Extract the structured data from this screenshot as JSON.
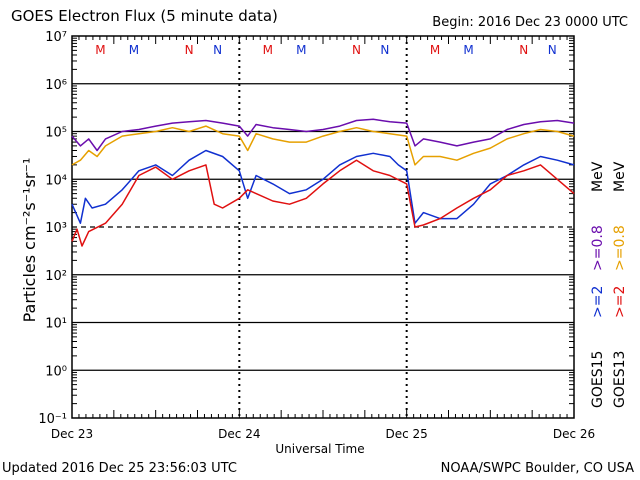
{
  "header": {
    "title": "GOES Electron Flux (5 minute data)",
    "begin": "Begin: 2016 Dec 23 0000 UTC"
  },
  "footer": {
    "updated": "Updated 2016 Dec 25 23:56:03 UTC",
    "credit": "NOAA/SWPC Boulder, CO USA"
  },
  "axis_labels": {
    "x": "Universal Time",
    "y": "Particles cm⁻²s⁻¹sr⁻¹"
  },
  "right_labels": {
    "goes15": "GOES15",
    "goes13": "GOES13",
    "red_high": ">=0.8",
    "red_low": ">=2",
    "blue_high": ">=0.8",
    "blue_low": ">=2",
    "mev_high": "MeV",
    "mev_low": "MeV"
  },
  "colors": {
    "goes15_high": "#6a0dad",
    "goes13_high": "#e6a000",
    "goes15_low": "#1030d0",
    "goes13_low": "#e01010",
    "M_marker": "#e01010",
    "N_marker": "#1030d0"
  },
  "chart_data": {
    "type": "line",
    "title": "GOES Electron Flux (5 minute data)",
    "xlabel": "Universal Time",
    "ylabel": "Particles cm⁻²s⁻¹sr⁻¹",
    "y_scale": "log",
    "ylim": [
      0.1,
      10000000
    ],
    "y_ticks": [
      "10⁻¹",
      "10⁰",
      "10¹",
      "10²",
      "10³",
      "10⁴",
      "10⁵",
      "10⁶",
      "10⁷"
    ],
    "x_ticks": [
      "Dec 23",
      "Dec 24",
      "Dec 25",
      "Dec 26"
    ],
    "threshold_line": 1000,
    "day_markers": [
      {
        "label": "M",
        "day": 0.17,
        "color": "red"
      },
      {
        "label": "M",
        "day": 0.37,
        "color": "blue"
      },
      {
        "label": "N",
        "day": 0.7,
        "color": "red"
      },
      {
        "label": "N",
        "day": 0.87,
        "color": "blue"
      },
      {
        "label": "M",
        "day": 1.17,
        "color": "red"
      },
      {
        "label": "M",
        "day": 1.37,
        "color": "blue"
      },
      {
        "label": "N",
        "day": 1.7,
        "color": "red"
      },
      {
        "label": "N",
        "day": 1.87,
        "color": "blue"
      },
      {
        "label": "M",
        "day": 2.17,
        "color": "red"
      },
      {
        "label": "M",
        "day": 2.37,
        "color": "blue"
      },
      {
        "label": "N",
        "day": 2.7,
        "color": "red"
      },
      {
        "label": "N",
        "day": 2.87,
        "color": "blue"
      }
    ],
    "series": [
      {
        "name": "GOES15 >=0.8 MeV",
        "color": "purple",
        "x": [
          0,
          0.05,
          0.1,
          0.15,
          0.2,
          0.3,
          0.4,
          0.5,
          0.6,
          0.7,
          0.8,
          0.9,
          1.0,
          1.05,
          1.1,
          1.2,
          1.3,
          1.4,
          1.5,
          1.6,
          1.7,
          1.8,
          1.9,
          2.0,
          2.05,
          2.1,
          2.2,
          2.3,
          2.4,
          2.5,
          2.6,
          2.7,
          2.8,
          2.9,
          3.0
        ],
        "y": [
          80000,
          50000,
          70000,
          40000,
          70000,
          100000,
          110000,
          130000,
          150000,
          160000,
          170000,
          150000,
          130000,
          80000,
          140000,
          120000,
          110000,
          100000,
          110000,
          130000,
          170000,
          180000,
          160000,
          150000,
          50000,
          70000,
          60000,
          50000,
          60000,
          70000,
          110000,
          140000,
          160000,
          170000,
          150000
        ]
      },
      {
        "name": "GOES13 >=0.8 MeV",
        "color": "orange",
        "x": [
          0,
          0.05,
          0.1,
          0.15,
          0.2,
          0.3,
          0.4,
          0.5,
          0.6,
          0.7,
          0.8,
          0.9,
          1.0,
          1.05,
          1.1,
          1.2,
          1.3,
          1.4,
          1.5,
          1.6,
          1.7,
          1.8,
          1.9,
          2.0,
          2.05,
          2.1,
          2.2,
          2.3,
          2.4,
          2.5,
          2.6,
          2.7,
          2.8,
          2.9,
          3.0
        ],
        "y": [
          20000,
          25000,
          40000,
          30000,
          50000,
          80000,
          90000,
          100000,
          120000,
          100000,
          130000,
          90000,
          80000,
          40000,
          90000,
          70000,
          60000,
          60000,
          80000,
          100000,
          120000,
          100000,
          90000,
          80000,
          20000,
          30000,
          30000,
          25000,
          35000,
          45000,
          70000,
          90000,
          110000,
          100000,
          80000
        ]
      },
      {
        "name": "GOES15 >=2 MeV",
        "color": "blue",
        "x": [
          0,
          0.05,
          0.08,
          0.12,
          0.2,
          0.3,
          0.4,
          0.5,
          0.6,
          0.7,
          0.8,
          0.9,
          1.0,
          1.05,
          1.1,
          1.2,
          1.3,
          1.4,
          1.5,
          1.6,
          1.7,
          1.8,
          1.9,
          1.95,
          2.0,
          2.05,
          2.1,
          2.2,
          2.3,
          2.4,
          2.5,
          2.6,
          2.7,
          2.8,
          2.9,
          3.0
        ],
        "y": [
          3000,
          1200,
          4000,
          2500,
          3000,
          6000,
          15000,
          20000,
          12000,
          25000,
          40000,
          30000,
          15000,
          4000,
          12000,
          8000,
          5000,
          6000,
          10000,
          20000,
          30000,
          35000,
          30000,
          20000,
          15000,
          1200,
          2000,
          1500,
          1500,
          3000,
          8000,
          12000,
          20000,
          30000,
          25000,
          20000
        ]
      },
      {
        "name": "GOES13 >=2 MeV",
        "color": "red",
        "x": [
          0,
          0.03,
          0.06,
          0.1,
          0.2,
          0.3,
          0.4,
          0.5,
          0.6,
          0.7,
          0.8,
          0.85,
          0.9,
          1.0,
          1.05,
          1.1,
          1.2,
          1.3,
          1.4,
          1.5,
          1.6,
          1.7,
          1.8,
          1.9,
          2.0,
          2.05,
          2.1,
          2.2,
          2.3,
          2.4,
          2.5,
          2.6,
          2.7,
          2.8,
          2.9,
          3.0
        ],
        "y": [
          500,
          900,
          400,
          800,
          1200,
          3000,
          12000,
          18000,
          10000,
          15000,
          20000,
          3000,
          2500,
          4000,
          6000,
          5000,
          3500,
          3000,
          4000,
          8000,
          15000,
          25000,
          15000,
          12000,
          8000,
          1000,
          1100,
          1500,
          2500,
          4000,
          6000,
          12000,
          15000,
          20000,
          10000,
          5000
        ]
      }
    ]
  }
}
